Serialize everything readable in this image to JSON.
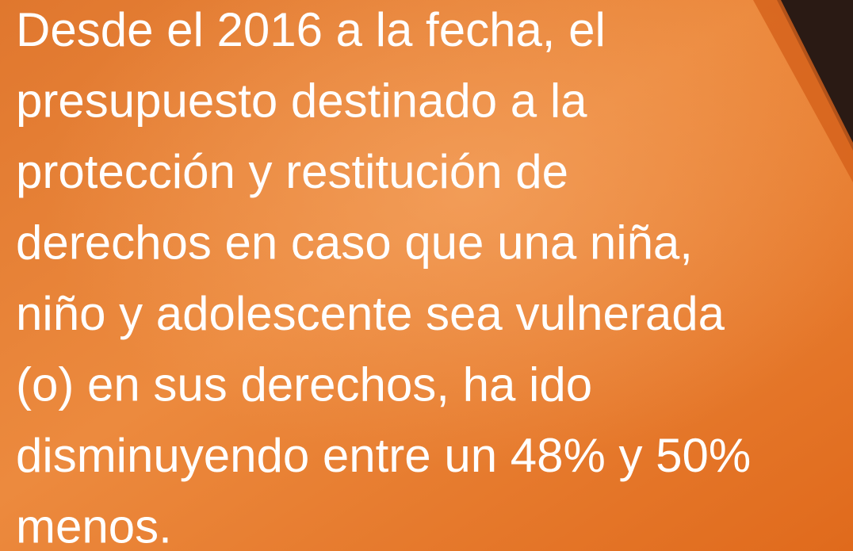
{
  "text_lines": [
    "Desde el 2016 a la fecha, el",
    "presupuesto destinado a la",
    "protección y restitución de",
    "derechos en caso que una niña,",
    "niño y adolescente sea vulnerada",
    "(o) en sus derechos, ha ido",
    "disminuyendo entre un 48% y 50%",
    "menos."
  ]
}
